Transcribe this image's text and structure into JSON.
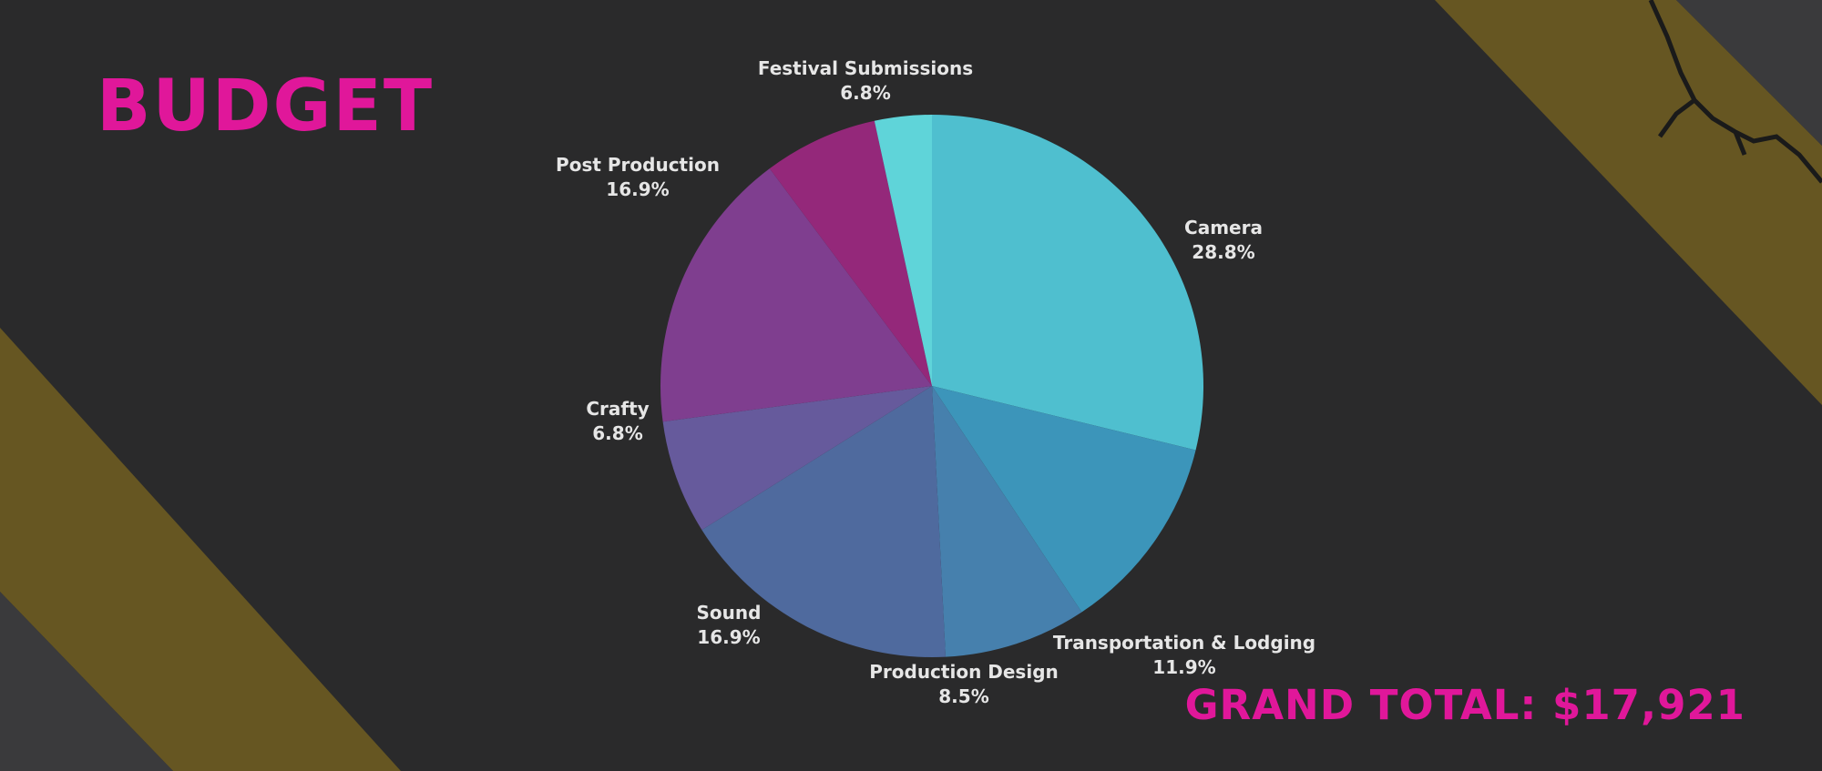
{
  "chart_data": {
    "type": "pie",
    "title": "BUDGET",
    "slices": [
      {
        "label": "Camera",
        "percent_label": "28.8%",
        "value": 28.8,
        "color": "#4fbfcf"
      },
      {
        "label": "Transportation & Lodging",
        "percent_label": "11.9%",
        "value": 11.9,
        "color": "#3c95ba"
      },
      {
        "label": "Production Design",
        "percent_label": "8.5%",
        "value": 8.5,
        "color": "#4680ad"
      },
      {
        "label": "Sound",
        "percent_label": "16.9%",
        "value": 16.9,
        "color": "#4f6a9e"
      },
      {
        "label": "Crafty",
        "percent_label": "6.8%",
        "value": 6.8,
        "color": "#665a9c"
      },
      {
        "label": "Post Production",
        "percent_label": "16.9%",
        "value": 16.9,
        "color": "#7f3e8f"
      },
      {
        "label": "Festival Submissions",
        "percent_label": "6.8%",
        "value": 6.8,
        "color": "#94287a"
      },
      {
        "label": "",
        "percent_label": "",
        "value": 3.4,
        "color": "#5fd4d9"
      }
    ]
  },
  "total_label": "GRAND TOTAL: $17,921",
  "colors": {
    "accent": "#e0179a",
    "background": "#2a2a2b",
    "stripe": "#6b5a22",
    "label_text": "#e6e6e6"
  }
}
